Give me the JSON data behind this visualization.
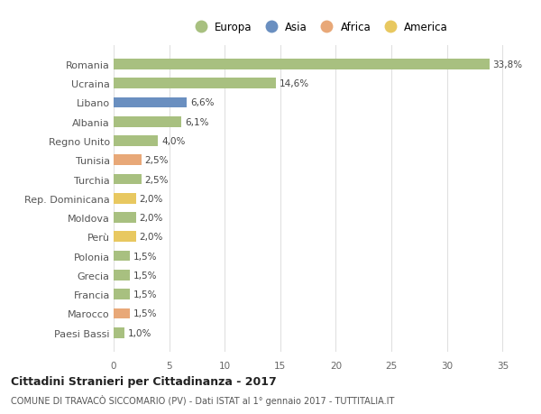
{
  "countries": [
    "Romania",
    "Ucraina",
    "Libano",
    "Albania",
    "Regno Unito",
    "Tunisia",
    "Turchia",
    "Rep. Dominicana",
    "Moldova",
    "Perù",
    "Polonia",
    "Grecia",
    "Francia",
    "Marocco",
    "Paesi Bassi"
  ],
  "values": [
    33.8,
    14.6,
    6.6,
    6.1,
    4.0,
    2.5,
    2.5,
    2.0,
    2.0,
    2.0,
    1.5,
    1.5,
    1.5,
    1.5,
    1.0
  ],
  "labels": [
    "33,8%",
    "14,6%",
    "6,6%",
    "6,1%",
    "4,0%",
    "2,5%",
    "2,5%",
    "2,0%",
    "2,0%",
    "2,0%",
    "1,5%",
    "1,5%",
    "1,5%",
    "1,5%",
    "1,0%"
  ],
  "continents": [
    "Europa",
    "Europa",
    "Asia",
    "Europa",
    "Europa",
    "Africa",
    "Europa",
    "America",
    "Europa",
    "America",
    "Europa",
    "Europa",
    "Europa",
    "Africa",
    "Europa"
  ],
  "continent_colors": {
    "Europa": "#a8c080",
    "Asia": "#6a8fc0",
    "Africa": "#e8a878",
    "America": "#e8c860"
  },
  "legend_items": [
    "Europa",
    "Asia",
    "Africa",
    "America"
  ],
  "title": "Cittadini Stranieri per Cittadinanza - 2017",
  "subtitle": "COMUNE DI TRAVACÒ SICCOMARIO (PV) - Dati ISTAT al 1° gennaio 2017 - TUTTITALIA.IT",
  "xlim": [
    0,
    37
  ],
  "xticks": [
    0,
    5,
    10,
    15,
    20,
    25,
    30,
    35
  ],
  "background_color": "#ffffff",
  "grid_color": "#e0e0e0",
  "bar_height": 0.55
}
